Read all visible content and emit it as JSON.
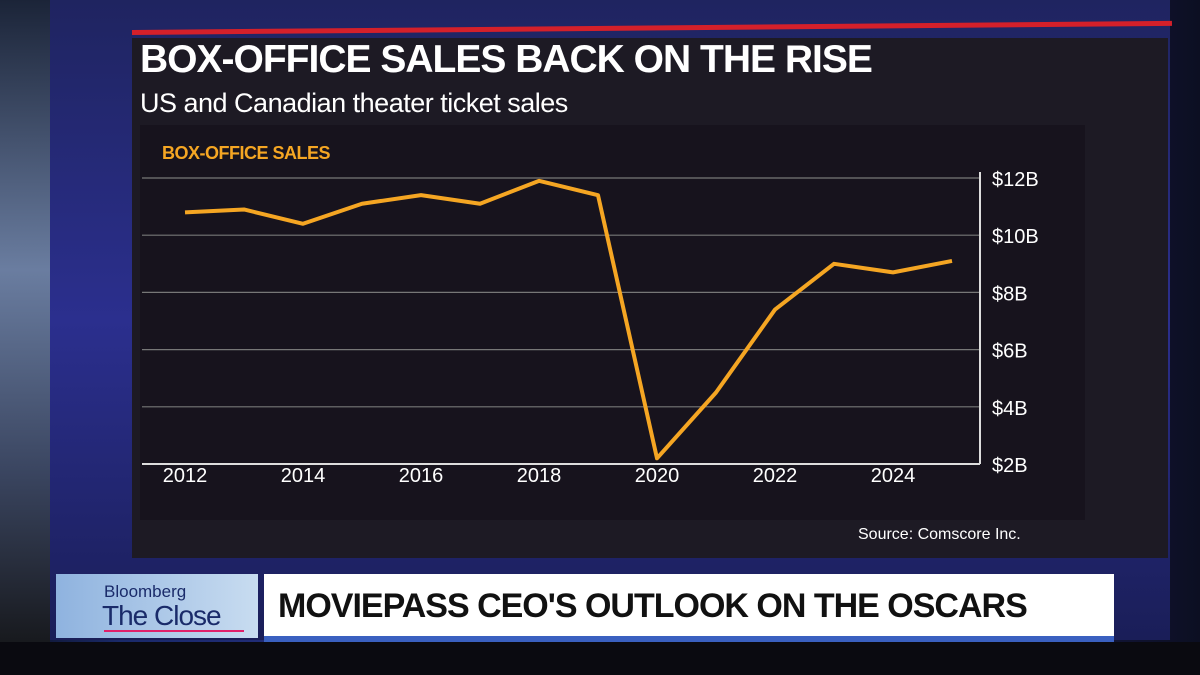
{
  "banner": {
    "brand": "Bloomberg",
    "show": "The Close",
    "headline": "MOVIEPASS CEO'S OUTLOOK ON THE OSCARS"
  },
  "colors": {
    "line": "#f5a623",
    "accent_red": "#d4202a",
    "background": "#1d1a24"
  },
  "chart_data": {
    "type": "line",
    "title": "BOX-OFFICE SALES BACK ON THE RISE",
    "subtitle": "US and Canadian theater ticket sales",
    "series_label": "BOX-OFFICE SALES",
    "source": "Source: Comscore Inc.",
    "x": [
      2012,
      2013,
      2014,
      2015,
      2016,
      2017,
      2018,
      2019,
      2020,
      2021,
      2022,
      2023,
      2024,
      2025
    ],
    "series": [
      {
        "values": [
          10.8,
          10.9,
          10.4,
          11.1,
          11.4,
          11.1,
          11.9,
          11.4,
          2.2,
          4.5,
          7.4,
          9.0,
          8.7,
          9.1
        ]
      }
    ],
    "x_ticks": [
      "2012",
      "2014",
      "2016",
      "2018",
      "2020",
      "2022",
      "2024"
    ],
    "y_ticks": [
      "$2B",
      "$4B",
      "$6B",
      "$8B",
      "$10B",
      "$12B"
    ],
    "y_tick_values": [
      2,
      4,
      6,
      8,
      10,
      12
    ],
    "ylim": [
      2,
      12
    ],
    "y_axis_side": "right",
    "grid": true
  }
}
